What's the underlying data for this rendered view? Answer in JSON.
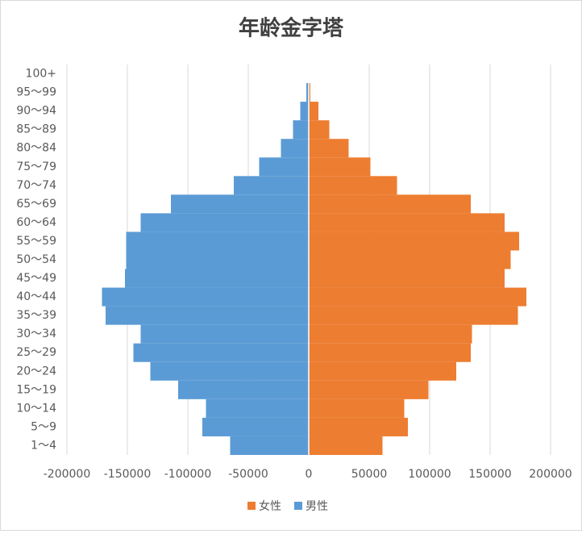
{
  "chart_data": {
    "type": "pyramid",
    "title": "年龄金字塔",
    "categories": [
      "1～4",
      "5～9",
      "10～14",
      "15～19",
      "20～24",
      "25～29",
      "30～34",
      "35～39",
      "40～44",
      "45～49",
      "50～54",
      "55～59",
      "60～64",
      "65～69",
      "70～74",
      "75～79",
      "80～84",
      "85～89",
      "90～94",
      "95～99",
      "100+"
    ],
    "series": [
      {
        "name": "女性",
        "color": "#ed7d31",
        "values": [
          61000,
          82000,
          79000,
          99000,
          122000,
          134000,
          135000,
          173000,
          180000,
          162000,
          167000,
          174000,
          162000,
          134000,
          73000,
          51000,
          33000,
          17000,
          8000,
          1300,
          300
        ]
      },
      {
        "name": "男性",
        "color": "#5b9bd5",
        "values": [
          -65000,
          -88000,
          -85000,
          -108000,
          -131000,
          -145000,
          -139000,
          -168000,
          -171000,
          -152000,
          -151000,
          -151000,
          -139000,
          -114000,
          -62000,
          -41000,
          -23000,
          -13000,
          -7000,
          -2000,
          -200
        ]
      }
    ],
    "xlim": [
      -200000,
      200000
    ],
    "xticks": [
      -200000,
      -150000,
      -100000,
      -50000,
      0,
      50000,
      100000,
      150000,
      200000
    ],
    "grid": true,
    "legend": "bottom"
  }
}
